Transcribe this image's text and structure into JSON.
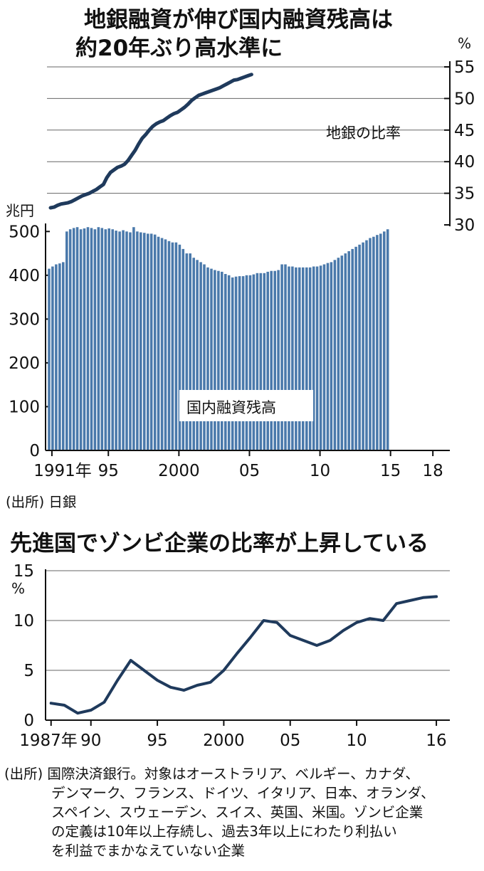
{
  "chart_data": [
    {
      "type": "line",
      "title_lines": [
        "地銀融資が伸び国内融資残高は",
        "約20年ぶり高水準に"
      ],
      "y_unit": "%",
      "ylim": [
        30,
        55
      ],
      "y_ticks": [
        "30",
        "35",
        "40",
        "45",
        "50",
        "55"
      ],
      "axis_side": "right",
      "grid": true,
      "series": [
        {
          "name": "地銀の比率",
          "x_start": 1991.0,
          "x_step": 0.25,
          "values": [
            32.7,
            32.8,
            33.1,
            33.3,
            33.4,
            33.5,
            33.7,
            34.0,
            34.3,
            34.6,
            34.8,
            35.0,
            35.3,
            35.6,
            36.0,
            36.4,
            37.5,
            38.3,
            38.7,
            39.1,
            39.3,
            39.6,
            40.2,
            41.0,
            41.8,
            42.8,
            43.7,
            44.3,
            45.0,
            45.6,
            46.0,
            46.3,
            46.5,
            46.9,
            47.3,
            47.6,
            47.8,
            48.2,
            48.6,
            49.1,
            49.7,
            50.1,
            50.5,
            50.7,
            50.9,
            51.1,
            51.3,
            51.5,
            51.7,
            52.0,
            52.3,
            52.6,
            52.9,
            53.0,
            53.2,
            53.4,
            53.6,
            53.8
          ]
        }
      ],
      "label": "地銀の比率"
    },
    {
      "type": "bar",
      "y_unit": "兆円",
      "ylim": [
        0,
        520
      ],
      "y_ticks": [
        "0",
        "100",
        "200",
        "300",
        "400",
        "500"
      ],
      "x_ticks": [
        {
          "x": 1991,
          "label": "1991年"
        },
        {
          "x": 1995,
          "label": "95"
        },
        {
          "x": 2000,
          "label": "2000"
        },
        {
          "x": 2005,
          "label": "05"
        },
        {
          "x": 2010,
          "label": "10"
        },
        {
          "x": 2015,
          "label": "15"
        },
        {
          "x": 2018,
          "label": "18"
        }
      ],
      "label": "国内融資残高",
      "series": [
        {
          "name": "国内融資残高",
          "x_start": 1990.9,
          "x_step": 0.25,
          "values": [
            415,
            420,
            425,
            427,
            430,
            500,
            505,
            508,
            510,
            505,
            507,
            510,
            508,
            505,
            510,
            508,
            505,
            507,
            505,
            502,
            500,
            503,
            500,
            498,
            510,
            500,
            498,
            497,
            495,
            495,
            493,
            488,
            485,
            482,
            478,
            475,
            475,
            470,
            460,
            450,
            450,
            440,
            435,
            430,
            425,
            418,
            415,
            412,
            410,
            408,
            403,
            400,
            395,
            397,
            398,
            398,
            400,
            400,
            402,
            405,
            405,
            405,
            408,
            410,
            410,
            412,
            425,
            425,
            420,
            420,
            418,
            418,
            418,
            418,
            418,
            420,
            420,
            422,
            425,
            428,
            430,
            435,
            440,
            445,
            450,
            455,
            460,
            465,
            470,
            475,
            480,
            485,
            488,
            492,
            495,
            500,
            505
          ]
        }
      ]
    },
    {
      "type": "line",
      "title": "先進国でゾンビ企業の比率が上昇している",
      "y_unit": "%",
      "ylim": [
        0,
        15
      ],
      "y_ticks": [
        "0",
        "5",
        "10",
        "15"
      ],
      "grid": true,
      "x_ticks": [
        {
          "x": 1987,
          "label": "1987年"
        },
        {
          "x": 1990,
          "label": "90"
        },
        {
          "x": 1995,
          "label": "95"
        },
        {
          "x": 2000,
          "label": "2000"
        },
        {
          "x": 2005,
          "label": "05"
        },
        {
          "x": 2010,
          "label": "10"
        },
        {
          "x": 2016,
          "label": "16"
        }
      ],
      "series": [
        {
          "name": "ゾンビ企業の比率",
          "x": [
            1987,
            1988,
            1989,
            1990,
            1991,
            1992,
            1993,
            1994,
            1995,
            1996,
            1997,
            1998,
            1999,
            2000,
            2001,
            2002,
            2003,
            2004,
            2005,
            2006,
            2007,
            2008,
            2009,
            2010,
            2011,
            2012,
            2013,
            2014,
            2015,
            2016
          ],
          "values": [
            1.7,
            1.5,
            0.7,
            1.0,
            1.8,
            4.0,
            6.0,
            5.0,
            4.0,
            3.3,
            3.0,
            3.5,
            3.8,
            5.0,
            6.7,
            8.3,
            10.0,
            9.8,
            8.5,
            8.0,
            7.5,
            8.0,
            9.0,
            9.8,
            10.2,
            10.0,
            11.7,
            12.0,
            12.3,
            12.4
          ]
        }
      ]
    }
  ],
  "source_top": "(出所) 日銀",
  "source_bottom": [
    "(出所) 国際決済銀行。対象はオーストラリア、ベルギー、カナダ、",
    "デンマーク、フランス、ドイツ、イタリア、日本、オランダ、",
    "スペイン、スウェーデン、スイス、英国、米国。ゾンビ企業",
    "の定義は10年以上存続し、過去3年以上にわたり利払い",
    "を利益でまかなえていない企業"
  ],
  "colors": {
    "line": "#1f3a5c",
    "bar": "#4a79ab",
    "grid": "#666666",
    "axis": "#111111"
  }
}
